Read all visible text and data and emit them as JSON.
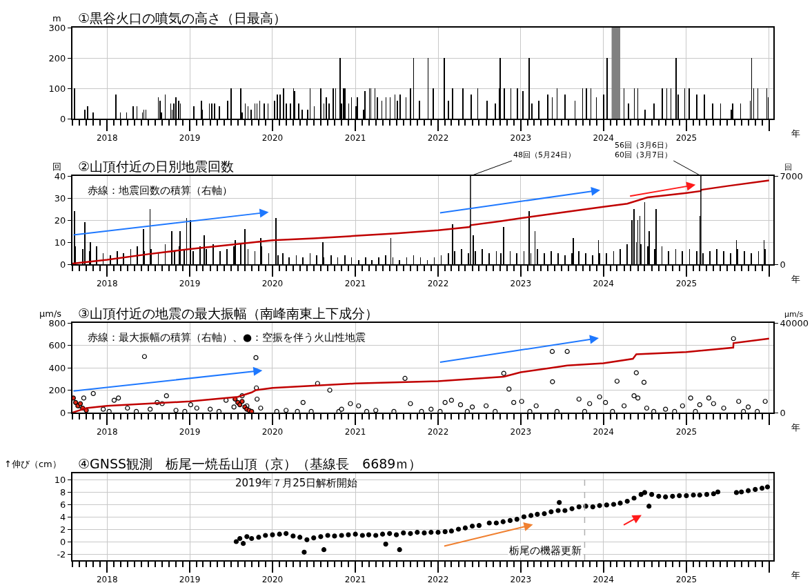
{
  "chart_data": [
    {
      "type": "bar",
      "title": "①黒谷火口の噴気の高さ（日最高）",
      "ylabel": "m",
      "xlabel": "年",
      "xlim": [
        "2017-08-01",
        "2026-01-20"
      ],
      "ylim": [
        0,
        300
      ],
      "yticks": [
        0,
        100,
        200,
        300
      ],
      "xticks": [
        {
          "value": "2018-01-01",
          "label": "2018"
        },
        {
          "value": "2019-01-01",
          "label": "2019"
        },
        {
          "value": "2020-01-01",
          "label": "2020"
        },
        {
          "value": "2021-01-01",
          "label": "2021"
        },
        {
          "value": "2022-01-01",
          "label": "2022"
        },
        {
          "value": "2023-01-01",
          "label": "2023"
        },
        {
          "value": "2024-01-01",
          "label": "2024"
        },
        {
          "value": "2025-01-01",
          "label": "2025"
        },
        {
          "value": "2026-01-01",
          "label": null
        }
      ],
      "grid": true,
      "bands": [
        {
          "axis": "x",
          "from": "2024-02-06",
          "to": "2024-03-15",
          "color": "#808080"
        }
      ],
      "series": [
        {
          "color": "#000000",
          "x": [
            "2017-08-10",
            "2017-09-25",
            "2017-10-07",
            "2017-11-01",
            "2018-02-08",
            "2018-03-01",
            "2018-03-28",
            "2018-04-25",
            "2018-05-13",
            "2018-06-06",
            "2018-06-12",
            "2018-06-21",
            "2018-08-15",
            "2018-08-22",
            "2018-08-28",
            "2018-09-15",
            "2018-10-09",
            "2018-10-15",
            "2018-10-22",
            "2018-11-01",
            "2018-11-12",
            "2018-11-21",
            "2019-01-18",
            "2019-02-21",
            "2019-02-25",
            "2019-03-28",
            "2019-04-08",
            "2019-04-20",
            "2019-05-12",
            "2019-06-18",
            "2019-07-03",
            "2019-08-15",
            "2019-08-20",
            "2019-09-03",
            "2019-09-15",
            "2019-09-28",
            "2019-10-15",
            "2019-10-25",
            "2019-11-06",
            "2019-11-25",
            "2019-12-12",
            "2020-01-10",
            "2020-01-22",
            "2020-02-03",
            "2020-02-18",
            "2020-03-03",
            "2020-03-20",
            "2020-04-03",
            "2020-04-08",
            "2020-04-25",
            "2020-05-12",
            "2020-06-05",
            "2020-06-15",
            "2020-07-03",
            "2020-08-01",
            "2020-08-15",
            "2020-08-25",
            "2020-09-06",
            "2020-09-25",
            "2020-10-06",
            "2020-10-25",
            "2020-11-01",
            "2020-11-10",
            "2020-11-16",
            "2020-12-03",
            "2020-12-15",
            "2021-01-03",
            "2021-01-10",
            "2021-02-06",
            "2021-02-12",
            "2021-03-04",
            "2021-03-10",
            "2021-03-28",
            "2021-04-08",
            "2021-04-28",
            "2021-05-16",
            "2021-06-03",
            "2021-06-25",
            "2021-07-05",
            "2021-07-18",
            "2021-08-12",
            "2021-09-01",
            "2021-09-15",
            "2021-10-10",
            "2021-11-18",
            "2021-12-10",
            "2022-01-28",
            "2022-02-15",
            "2022-03-06",
            "2022-04-21",
            "2022-05-28",
            "2022-06-25",
            "2022-08-06",
            "2022-09-10",
            "2022-09-28",
            "2022-10-03",
            "2022-10-20",
            "2022-11-18",
            "2022-12-18",
            "2023-01-10",
            "2023-02-06",
            "2023-02-20",
            "2023-03-21",
            "2023-05-01",
            "2023-05-20",
            "2023-06-10",
            "2023-07-16",
            "2023-08-28",
            "2023-10-01",
            "2023-10-18",
            "2023-11-06",
            "2023-12-01",
            "2024-01-01",
            "2024-01-18",
            "2024-04-01",
            "2024-04-20",
            "2024-05-16",
            "2024-06-01",
            "2024-07-03",
            "2024-08-12",
            "2024-09-16",
            "2024-10-06",
            "2024-10-25",
            "2024-11-16",
            "2024-11-25",
            "2024-12-25",
            "2025-01-13",
            "2025-02-16",
            "2025-03-22",
            "2025-04-28",
            "2025-06-01",
            "2025-07-19",
            "2025-07-25",
            "2025-08-28",
            "2025-10-10",
            "2025-10-16",
            "2025-10-25",
            "2025-11-13",
            "2025-12-22",
            "2025-12-28"
          ],
          "values": [
            100,
            30,
            40,
            20,
            80,
            20,
            20,
            40,
            40,
            20,
            30,
            30,
            70,
            60,
            20,
            80,
            50,
            30,
            50,
            70,
            60,
            50,
            40,
            60,
            30,
            50,
            50,
            50,
            40,
            60,
            100,
            100,
            20,
            50,
            40,
            30,
            50,
            50,
            60,
            50,
            50,
            60,
            80,
            80,
            100,
            50,
            50,
            100,
            90,
            50,
            30,
            30,
            100,
            40,
            100,
            50,
            70,
            50,
            100,
            100,
            200,
            50,
            100,
            100,
            50,
            70,
            40,
            70,
            30,
            90,
            100,
            100,
            100,
            70,
            60,
            70,
            70,
            80,
            60,
            80,
            70,
            100,
            200,
            60,
            200,
            100,
            200,
            60,
            100,
            100,
            80,
            100,
            60,
            50,
            100,
            200,
            100,
            100,
            100,
            90,
            200,
            50,
            60,
            80,
            70,
            100,
            80,
            60,
            100,
            100,
            100,
            70,
            80,
            200,
            100,
            50,
            100,
            100,
            30,
            50,
            100,
            100,
            100,
            200,
            80,
            100,
            100,
            80,
            80,
            50,
            50,
            30,
            50,
            50,
            60,
            200,
            100,
            100,
            100,
            70
          ]
        }
      ]
    },
    {
      "type": "bar",
      "title": "②山頂付近の日別地震回数",
      "ylabel": "回",
      "y2label": "回",
      "xlabel": "年",
      "xlim": [
        "2017-08-01",
        "2026-01-20"
      ],
      "ylim": [
        0,
        40
      ],
      "yticks": [
        0,
        10,
        20,
        30,
        40
      ],
      "y2lim": [
        0,
        7000
      ],
      "y2ticks": [
        0,
        7000
      ],
      "xticks": [
        {
          "value": "2018-01-01",
          "label": "2018"
        },
        {
          "value": "2019-01-01",
          "label": "2019"
        },
        {
          "value": "2020-01-01",
          "label": "2020"
        },
        {
          "value": "2021-01-01",
          "label": "2021"
        },
        {
          "value": "2022-01-01",
          "label": "2022"
        },
        {
          "value": "2023-01-01",
          "label": "2023"
        },
        {
          "value": "2024-01-01",
          "label": "2024"
        },
        {
          "value": "2025-01-01",
          "label": "2025"
        },
        {
          "value": "2026-01-01",
          "label": null
        }
      ],
      "grid": true,
      "annotations": [
        "赤線：地震回数の積算（右軸）",
        {
          "text": "48回（5月24日）",
          "x": "2022-05-24",
          "y": 40
        },
        {
          "text": "56回（3月6日）\n60回（3月7日）",
          "x": "2025-03-07",
          "y": 40
        }
      ],
      "ref_lines": [
        {
          "axis": "x",
          "value": "2022-05-24",
          "color": "#000000"
        },
        {
          "axis": "x",
          "value": "2025-03-06",
          "color": "#000000"
        }
      ],
      "series": [
        {
          "type": "bar",
          "color": "#000000",
          "x": [
            "2017-08-10",
            "2017-08-15",
            "2017-09-15",
            "2017-09-25",
            "2017-10-15",
            "2017-10-20",
            "2017-11-15",
            "2017-12-15",
            "2018-01-15",
            "2018-02-15",
            "2018-03-15",
            "2018-04-15",
            "2018-05-15",
            "2018-06-10",
            "2018-06-15",
            "2018-07-10",
            "2018-07-15",
            "2018-08-15",
            "2018-09-15",
            "2018-10-13",
            "2018-10-25",
            "2018-11-15",
            "2018-11-20",
            "2018-12-08",
            "2018-12-18",
            "2019-01-03",
            "2019-01-15",
            "2019-02-15",
            "2019-03-05",
            "2019-03-15",
            "2019-04-15",
            "2019-05-15",
            "2019-06-15",
            "2019-07-15",
            "2019-07-20",
            "2019-08-15",
            "2019-09-01",
            "2019-09-15",
            "2019-10-15",
            "2019-11-10",
            "2019-11-15",
            "2019-12-15",
            "2020-01-16",
            "2020-01-25",
            "2020-02-15",
            "2020-03-15",
            "2020-04-15",
            "2020-05-15",
            "2020-06-15",
            "2020-07-15",
            "2020-08-10",
            "2020-08-15",
            "2020-09-15",
            "2020-10-15",
            "2020-11-15",
            "2020-12-15",
            "2021-01-15",
            "2021-02-15",
            "2021-03-15",
            "2021-04-15",
            "2021-05-15",
            "2021-06-06",
            "2021-06-15",
            "2021-07-15",
            "2021-08-15",
            "2021-09-15",
            "2021-10-15",
            "2021-11-15",
            "2021-12-15",
            "2022-01-15",
            "2022-02-15",
            "2022-03-06",
            "2022-03-15",
            "2022-04-15",
            "2022-05-15",
            "2022-06-05",
            "2022-06-15",
            "2022-07-15",
            "2022-08-15",
            "2022-09-15",
            "2022-10-05",
            "2022-10-18",
            "2022-11-15",
            "2022-12-15",
            "2023-01-15",
            "2023-02-06",
            "2023-02-15",
            "2023-03-05",
            "2023-03-15",
            "2023-04-15",
            "2023-05-15",
            "2023-06-15",
            "2023-07-15",
            "2023-08-15",
            "2023-08-20",
            "2023-09-15",
            "2023-10-15",
            "2023-11-15",
            "2023-12-10",
            "2023-12-15",
            "2024-01-15",
            "2024-02-15",
            "2024-03-15",
            "2024-04-15",
            "2024-05-05",
            "2024-05-14",
            "2024-05-25",
            "2024-06-01",
            "2024-06-10",
            "2024-06-15",
            "2024-07-01",
            "2024-07-15",
            "2024-07-20",
            "2024-08-15",
            "2024-08-20",
            "2024-09-15",
            "2024-10-15",
            "2024-11-15",
            "2024-12-15",
            "2025-01-15",
            "2025-02-15",
            "2025-03-02",
            "2025-03-15",
            "2025-04-15",
            "2025-05-15",
            "2025-06-15",
            "2025-07-15",
            "2025-08-10",
            "2025-08-15",
            "2025-09-15",
            "2025-10-15",
            "2025-11-15",
            "2025-12-10",
            "2025-12-15"
          ],
          "values": [
            24,
            8,
            7,
            19,
            6,
            10,
            8,
            5,
            4,
            6,
            5,
            7,
            8,
            16,
            6,
            25,
            7,
            5,
            9,
            15,
            6,
            8,
            15,
            7,
            21,
            20,
            6,
            8,
            13,
            7,
            9,
            6,
            7,
            8,
            11,
            9,
            16,
            7,
            6,
            12,
            8,
            5,
            21,
            4,
            5,
            3,
            4,
            3,
            5,
            4,
            10,
            3,
            4,
            3,
            4,
            3,
            2,
            3,
            2,
            3,
            4,
            12,
            3,
            2,
            3,
            4,
            3,
            2,
            3,
            4,
            5,
            18,
            6,
            7,
            5,
            13,
            6,
            7,
            5,
            6,
            5,
            17,
            6,
            5,
            6,
            24,
            5,
            15,
            7,
            5,
            6,
            5,
            4,
            5,
            12,
            6,
            5,
            4,
            11,
            5,
            5,
            6,
            7,
            9,
            20,
            25,
            10,
            20,
            22,
            9,
            28,
            8,
            15,
            7,
            25,
            8,
            6,
            7,
            6,
            7,
            6,
            22,
            5,
            6,
            7,
            6,
            5,
            11,
            7,
            6,
            5,
            6,
            11,
            7
          ]
        },
        {
          "type": "line",
          "axis": "y2",
          "color": "#c00000",
          "x": [
            "2017-08-01",
            "2018-01-01",
            "2018-07-01",
            "2019-01-01",
            "2019-07-01",
            "2020-01-01",
            "2020-07-01",
            "2021-01-01",
            "2021-07-01",
            "2022-01-01",
            "2022-05-20",
            "2022-05-25",
            "2022-10-01",
            "2023-01-01",
            "2023-07-01",
            "2024-01-01",
            "2024-04-15",
            "2024-07-15",
            "2025-01-01",
            "2025-03-05",
            "2025-03-08",
            "2025-07-01",
            "2026-01-01"
          ],
          "values": [
            50,
            350,
            800,
            1200,
            1550,
            1900,
            2050,
            2250,
            2450,
            2700,
            2950,
            3100,
            3400,
            3650,
            4100,
            4550,
            4800,
            5300,
            5650,
            5800,
            5900,
            6200,
            6650
          ]
        }
      ]
    },
    {
      "type": "scatter",
      "title": "③山頂付近の地震の最大振幅（南峰南東上下成分）",
      "ylabel": "μm/s",
      "y2label": "μm/s",
      "xlabel": "年",
      "xlim": [
        "2017-08-01",
        "2026-01-20"
      ],
      "ylim": [
        0,
        800
      ],
      "yticks": [
        0,
        200,
        400,
        600,
        800
      ],
      "y2lim": [
        0,
        40000
      ],
      "y2ticks": [
        0,
        40000
      ],
      "xticks": [
        {
          "value": "2018-01-01",
          "label": "2018"
        },
        {
          "value": "2019-01-01",
          "label": "2019"
        },
        {
          "value": "2020-01-01",
          "label": "2020"
        },
        {
          "value": "2021-01-01",
          "label": "2021"
        },
        {
          "value": "2022-01-01",
          "label": "2022"
        },
        {
          "value": "2023-01-01",
          "label": "2023"
        },
        {
          "value": "2024-01-01",
          "label": "2024"
        },
        {
          "value": "2025-01-01",
          "label": "2025"
        },
        {
          "value": "2026-01-01",
          "label": null
        }
      ],
      "grid": true,
      "annotations": [
        "赤線：最大振幅の積算（右軸）、●：空振を伴う火山性地震"
      ],
      "series": [
        {
          "type": "line",
          "axis": "y2",
          "color": "#c00000",
          "x": [
            "2017-08-01",
            "2017-10-01",
            "2018-01-01",
            "2019-01-01",
            "2019-08-01",
            "2019-10-01",
            "2019-10-20",
            "2020-01-01",
            "2021-01-01",
            "2022-01-01",
            "2022-10-18",
            "2023-01-01",
            "2023-05-20",
            "2023-07-25",
            "2024-01-01",
            "2024-05-10",
            "2024-05-25",
            "2025-01-01",
            "2025-07-27",
            "2025-07-28",
            "2026-01-01"
          ],
          "values": [
            0,
            2000,
            3000,
            5000,
            7000,
            9000,
            10000,
            11000,
            13000,
            14000,
            16000,
            18000,
            20000,
            21000,
            22000,
            24000,
            26000,
            27000,
            29000,
            31000,
            33000
          ]
        },
        {
          "type": "scatter",
          "marker": "circle",
          "color": "#ffffff",
          "x": [
            "2017-09-01",
            "2017-09-20",
            "2017-11-01",
            "2017-12-15",
            "2018-01-10",
            "2018-02-01",
            "2018-02-20",
            "2018-04-01",
            "2018-05-10",
            "2018-06-15",
            "2018-07-10",
            "2018-08-10",
            "2018-09-01",
            "2018-09-20",
            "2018-11-01",
            "2018-12-10",
            "2019-01-05",
            "2019-02-01",
            "2019-04-01",
            "2019-05-10",
            "2019-06-10",
            "2019-07-15",
            "2019-08-20",
            "2019-09-10",
            "2019-10-20",
            "2019-10-22",
            "2019-10-25",
            "2019-11-10",
            "2020-01-20",
            "2020-03-01",
            "2020-04-20",
            "2020-05-15",
            "2020-06-20",
            "2020-07-18",
            "2020-09-10",
            "2020-10-20",
            "2020-11-01",
            "2020-12-10",
            "2021-01-15",
            "2021-02-20",
            "2021-04-01",
            "2021-06-20",
            "2021-08-08",
            "2021-09-01",
            "2021-10-20",
            "2021-12-01",
            "2022-01-10",
            "2022-02-01",
            "2022-03-01",
            "2022-04-10",
            "2022-05-10",
            "2022-06-01",
            "2022-08-01",
            "2022-09-10",
            "2022-10-18",
            "2022-11-10",
            "2022-12-01",
            "2023-01-05",
            "2023-02-10",
            "2023-03-10",
            "2023-05-20",
            "2023-05-21",
            "2023-06-10",
            "2023-07-25",
            "2023-09-15",
            "2023-10-10",
            "2023-11-01",
            "2023-12-15",
            "2024-01-10",
            "2024-02-10",
            "2024-03-01",
            "2024-04-01",
            "2024-05-15",
            "2024-05-25",
            "2024-06-01",
            "2024-06-28",
            "2024-07-10",
            "2024-08-10",
            "2024-10-01",
            "2024-11-10",
            "2024-12-15",
            "2025-01-20",
            "2025-02-10",
            "2025-03-01",
            "2025-04-10",
            "2025-05-01",
            "2025-06-15",
            "2025-07-28",
            "2025-08-20",
            "2025-09-10",
            "2025-10-01",
            "2025-11-10",
            "2025-12-15"
          ],
          "values": [
            60,
            130,
            170,
            30,
            10,
            110,
            130,
            40,
            10,
            500,
            30,
            90,
            80,
            150,
            20,
            10,
            70,
            40,
            30,
            10,
            110,
            50,
            150,
            60,
            490,
            220,
            120,
            40,
            10,
            20,
            10,
            90,
            10,
            260,
            200,
            10,
            30,
            80,
            60,
            10,
            20,
            10,
            305,
            80,
            10,
            30,
            10,
            90,
            110,
            70,
            10,
            50,
            60,
            10,
            350,
            210,
            90,
            100,
            10,
            60,
            545,
            275,
            10,
            545,
            120,
            10,
            80,
            140,
            90,
            10,
            280,
            60,
            150,
            355,
            130,
            270,
            40,
            10,
            30,
            10,
            60,
            130,
            10,
            70,
            130,
            80,
            40,
            660,
            100,
            10,
            50,
            10,
            100
          ]
        },
        {
          "type": "scatter",
          "marker": "circle",
          "color": "#e02818",
          "x": [
            "2017-08-05",
            "2017-08-15",
            "2017-08-25",
            "2017-09-05",
            "2017-09-15",
            "2017-10-01",
            "2019-07-20",
            "2019-08-01",
            "2019-08-10",
            "2019-08-20",
            "2019-09-01",
            "2019-09-10",
            "2019-09-20",
            "2019-10-01"
          ],
          "values": [
            130,
            90,
            60,
            80,
            40,
            20,
            120,
            90,
            70,
            100,
            50,
            30,
            20,
            10
          ]
        }
      ]
    },
    {
      "type": "scatter",
      "title": "④GNSS観測　栃尾一焼岳山頂（京）（基線長　6689ｍ）",
      "ylabel": "↑伸び（cm）",
      "xlabel": "年",
      "xlim": [
        "2017-08-01",
        "2026-01-20"
      ],
      "ylim": [
        -3,
        11
      ],
      "yticks": [
        -2,
        0,
        2,
        4,
        6,
        8,
        10
      ],
      "xticks": [
        {
          "value": "2018-01-01",
          "label": "2018"
        },
        {
          "value": "2019-01-01",
          "label": "2019"
        },
        {
          "value": "2020-01-01",
          "label": "2020"
        },
        {
          "value": "2021-01-01",
          "label": "2021"
        },
        {
          "value": "2022-01-01",
          "label": "2022"
        },
        {
          "value": "2023-01-01",
          "label": "2023"
        },
        {
          "value": "2024-01-01",
          "label": "2024"
        },
        {
          "value": "2025-01-01",
          "label": "2025"
        },
        {
          "value": "2026-01-01",
          "label": null
        }
      ],
      "grid": true,
      "marker": "circle",
      "annotations": [
        "2019年７月25日解析開始"
      ],
      "ref_lines": [
        {
          "axis": "x",
          "value": "2023-10-10",
          "label": "栃尾の機器更新",
          "color": "#b0b0b0",
          "line_style": "dashed"
        }
      ],
      "series": [
        {
          "type": "scatter",
          "color": "#000000",
          "x": [
            "2019-07-25",
            "2019-08-10",
            "2019-08-25",
            "2019-09-10",
            "2019-10-01",
            "2019-11-01",
            "2019-12-01",
            "2020-01-01",
            "2020-02-01",
            "2020-03-01",
            "2020-04-01",
            "2020-05-01",
            "2020-05-20",
            "2020-06-01",
            "2020-07-01",
            "2020-08-01",
            "2020-08-15",
            "2020-09-01",
            "2020-10-01",
            "2020-11-01",
            "2020-12-01",
            "2021-01-01",
            "2021-02-01",
            "2021-03-01",
            "2021-04-01",
            "2021-05-01",
            "2021-05-15",
            "2021-06-01",
            "2021-07-01",
            "2021-07-15",
            "2021-08-01",
            "2021-09-01",
            "2021-10-01",
            "2021-11-01",
            "2021-12-01",
            "2022-01-01",
            "2022-02-01",
            "2022-03-01",
            "2022-04-01",
            "2022-05-01",
            "2022-06-01",
            "2022-07-01",
            "2022-08-15",
            "2022-09-15",
            "2022-10-15",
            "2022-11-15",
            "2022-12-15",
            "2023-01-15",
            "2023-02-15",
            "2023-03-15",
            "2023-04-15",
            "2023-05-15",
            "2023-06-15",
            "2023-06-20",
            "2023-07-15",
            "2023-08-15",
            "2023-09-15",
            "2023-10-15",
            "2023-11-15",
            "2023-12-15",
            "2024-01-15",
            "2024-02-15",
            "2024-03-15",
            "2024-04-15",
            "2024-05-15",
            "2024-06-15",
            "2024-07-01",
            "2024-07-20",
            "2024-08-01",
            "2024-09-01",
            "2024-10-01",
            "2024-11-01",
            "2024-12-01",
            "2025-01-01",
            "2025-02-01",
            "2025-03-01",
            "2025-04-01",
            "2025-05-01",
            "2025-05-20",
            "2025-08-10",
            "2025-09-01",
            "2025-10-01",
            "2025-11-01",
            "2025-12-01",
            "2025-12-25"
          ],
          "values": [
            0.0,
            0.5,
            -0.3,
            0.8,
            0.5,
            0.7,
            1.0,
            1.1,
            1.2,
            1.3,
            0.9,
            0.7,
            -1.7,
            0.3,
            0.6,
            0.8,
            -1.3,
            1.0,
            0.9,
            1.0,
            1.1,
            1.2,
            1.0,
            1.1,
            1.0,
            1.2,
            -0.4,
            1.3,
            1.1,
            -1.3,
            1.4,
            1.3,
            1.5,
            1.4,
            1.5,
            1.5,
            1.6,
            1.7,
            2.0,
            2.2,
            2.5,
            2.6,
            3.0,
            3.0,
            3.2,
            3.4,
            3.6,
            4.0,
            4.2,
            4.4,
            4.5,
            4.8,
            5.0,
            6.3,
            5.0,
            5.3,
            5.6,
            5.7,
            5.6,
            5.8,
            5.9,
            6.0,
            6.2,
            6.5,
            7.0,
            7.6,
            7.9,
            5.7,
            7.6,
            7.3,
            7.2,
            7.3,
            7.4,
            7.4,
            7.5,
            7.5,
            7.6,
            7.7,
            8.0,
            7.9,
            8.0,
            8.2,
            8.4,
            8.6,
            8.8
          ]
        }
      ]
    }
  ]
}
